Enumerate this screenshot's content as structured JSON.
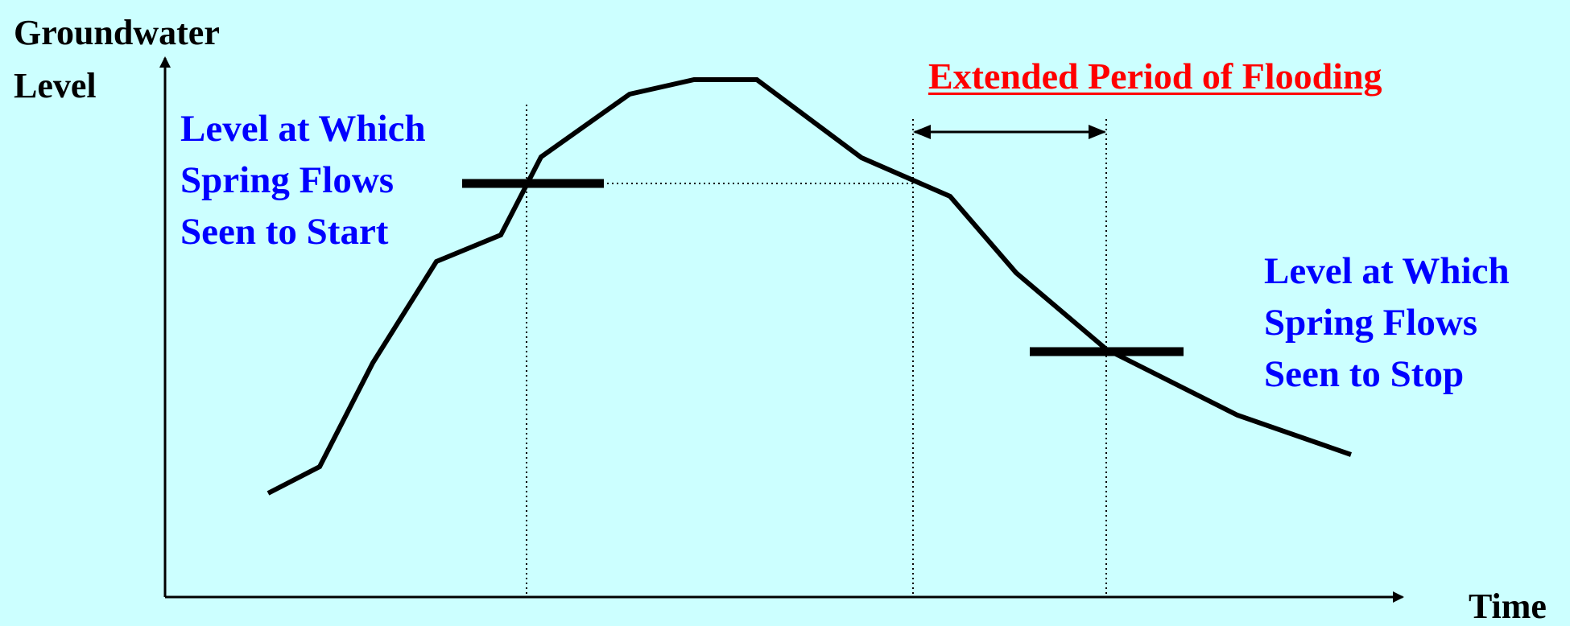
{
  "colors": {
    "background": "#ccffff",
    "line": "#000000",
    "note_text": "#0000ff",
    "flood_text": "#ff0000"
  },
  "axes": {
    "y_label_line1": "Groundwater",
    "y_label_line2": "Level",
    "x_label": "Time"
  },
  "start_note": {
    "line1": "Level at Which",
    "line2": "Spring Flows",
    "line3": "Seen to Start"
  },
  "stop_note": {
    "line1": "Level at Which",
    "line2": "Spring Flows",
    "line3": "Seen to Stop"
  },
  "flooding": {
    "label": "Extended Period of Flooding"
  }
}
